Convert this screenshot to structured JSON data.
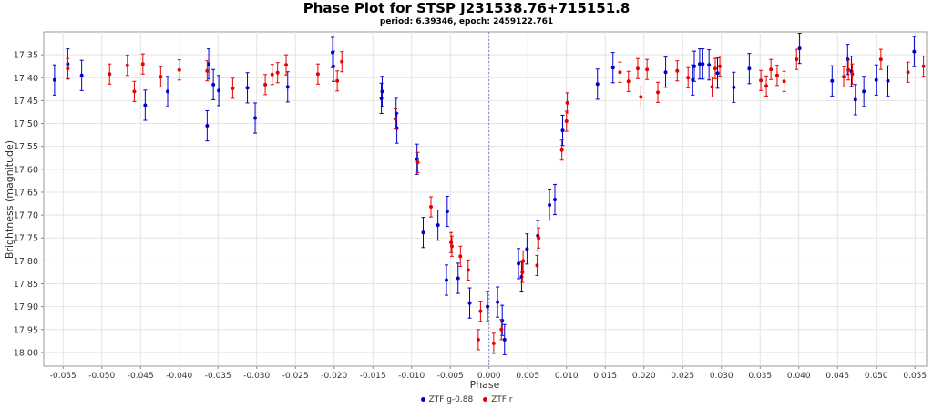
{
  "chart_data": {
    "type": "scatter",
    "title": "Phase Plot for STSP J231538.76+715151.8",
    "subtitle": "period: 6.39346, epoch: 2459122.761",
    "xlabel": "Phase",
    "ylabel": "Brightness (magnitude)",
    "xlim": [
      -0.0575,
      0.0565
    ],
    "ylim": [
      17.3,
      18.03
    ],
    "y_inverted": true,
    "grid": true,
    "legend_position": "bottom",
    "x_ticks": [
      -0.055,
      -0.05,
      -0.045,
      -0.04,
      -0.035,
      -0.03,
      -0.025,
      -0.02,
      -0.015,
      -0.01,
      -0.005,
      0.0,
      0.005,
      0.01,
      0.015,
      0.02,
      0.025,
      0.03,
      0.035,
      0.04,
      0.045,
      0.05,
      0.055
    ],
    "x_tick_labels": [
      "-0.055",
      "-0.050",
      "-0.045",
      "-0.040",
      "-0.035",
      "-0.030",
      "-0.025",
      "-0.020",
      "-0.015",
      "-0.010",
      "-0.005",
      "0.000",
      "0.005",
      "0.010",
      "0.015",
      "0.020",
      "0.025",
      "0.030",
      "0.035",
      "0.040",
      "0.045",
      "0.050",
      "0.055"
    ],
    "y_ticks": [
      17.35,
      17.4,
      17.45,
      17.5,
      17.55,
      17.6,
      17.65,
      17.7,
      17.75,
      17.8,
      17.85,
      17.9,
      17.95,
      18.0
    ],
    "y_tick_labels": [
      "17.35",
      "17.40",
      "17.45",
      "17.50",
      "17.55",
      "17.60",
      "17.65",
      "17.70",
      "17.75",
      "17.80",
      "17.85",
      "17.90",
      "17.95",
      "18.00"
    ],
    "series": [
      {
        "name": "ZTF g-0.88",
        "color": "#0000cc",
        "points": [
          {
            "x": -0.0561,
            "y": 17.405,
            "err": 0.033
          },
          {
            "x": -0.0544,
            "y": 17.37,
            "err": 0.033
          },
          {
            "x": -0.0526,
            "y": 17.395,
            "err": 0.033
          },
          {
            "x": -0.0444,
            "y": 17.46,
            "err": 0.033
          },
          {
            "x": -0.0415,
            "y": 17.43,
            "err": 0.033
          },
          {
            "x": -0.0364,
            "y": 17.505,
            "err": 0.033
          },
          {
            "x": -0.0362,
            "y": 17.37,
            "err": 0.033
          },
          {
            "x": -0.0356,
            "y": 17.415,
            "err": 0.033
          },
          {
            "x": -0.0349,
            "y": 17.428,
            "err": 0.033
          },
          {
            "x": -0.0312,
            "y": 17.422,
            "err": 0.033
          },
          {
            "x": -0.0302,
            "y": 17.488,
            "err": 0.033
          },
          {
            "x": -0.026,
            "y": 17.42,
            "err": 0.033
          },
          {
            "x": -0.0202,
            "y": 17.345,
            "err": 0.033
          },
          {
            "x": -0.0201,
            "y": 17.375,
            "err": 0.033
          },
          {
            "x": -0.0139,
            "y": 17.445,
            "err": 0.033
          },
          {
            "x": -0.0138,
            "y": 17.43,
            "err": 0.033
          },
          {
            "x": -0.012,
            "y": 17.478,
            "err": 0.033
          },
          {
            "x": -0.0119,
            "y": 17.51,
            "err": 0.033
          },
          {
            "x": -0.0093,
            "y": 17.578,
            "err": 0.033
          },
          {
            "x": -0.0085,
            "y": 17.738,
            "err": 0.033
          },
          {
            "x": -0.0066,
            "y": 17.722,
            "err": 0.033
          },
          {
            "x": -0.0055,
            "y": 17.842,
            "err": 0.033
          },
          {
            "x": -0.0054,
            "y": 17.692,
            "err": 0.033
          },
          {
            "x": -0.004,
            "y": 17.838,
            "err": 0.033
          },
          {
            "x": -0.0025,
            "y": 17.892,
            "err": 0.033
          },
          {
            "x": -0.0002,
            "y": 17.9,
            "err": 0.033
          },
          {
            "x": 0.0011,
            "y": 17.89,
            "err": 0.033
          },
          {
            "x": 0.0017,
            "y": 17.93,
            "err": 0.033
          },
          {
            "x": 0.002,
            "y": 17.972,
            "err": 0.033
          },
          {
            "x": 0.0038,
            "y": 17.806,
            "err": 0.033
          },
          {
            "x": 0.0042,
            "y": 17.835,
            "err": 0.033
          },
          {
            "x": 0.0049,
            "y": 17.774,
            "err": 0.033
          },
          {
            "x": 0.0063,
            "y": 17.745,
            "err": 0.033
          },
          {
            "x": 0.0078,
            "y": 17.678,
            "err": 0.033
          },
          {
            "x": 0.0085,
            "y": 17.666,
            "err": 0.033
          },
          {
            "x": 0.0095,
            "y": 17.515,
            "err": 0.033
          },
          {
            "x": 0.014,
            "y": 17.414,
            "err": 0.033
          },
          {
            "x": 0.016,
            "y": 17.378,
            "err": 0.033
          },
          {
            "x": 0.0228,
            "y": 17.388,
            "err": 0.033
          },
          {
            "x": 0.0263,
            "y": 17.405,
            "err": 0.033
          },
          {
            "x": 0.0265,
            "y": 17.375,
            "err": 0.033
          },
          {
            "x": 0.0272,
            "y": 17.37,
            "err": 0.033
          },
          {
            "x": 0.0276,
            "y": 17.37,
            "err": 0.033
          },
          {
            "x": 0.0284,
            "y": 17.372,
            "err": 0.033
          },
          {
            "x": 0.0295,
            "y": 17.39,
            "err": 0.033
          },
          {
            "x": 0.0316,
            "y": 17.421,
            "err": 0.033
          },
          {
            "x": 0.0336,
            "y": 17.38,
            "err": 0.033
          },
          {
            "x": 0.0401,
            "y": 17.336,
            "err": 0.033
          },
          {
            "x": 0.0443,
            "y": 17.407,
            "err": 0.033
          },
          {
            "x": 0.0463,
            "y": 17.36,
            "err": 0.033
          },
          {
            "x": 0.0468,
            "y": 17.386,
            "err": 0.033
          },
          {
            "x": 0.0473,
            "y": 17.448,
            "err": 0.033
          },
          {
            "x": 0.0484,
            "y": 17.43,
            "err": 0.033
          },
          {
            "x": 0.05,
            "y": 17.405,
            "err": 0.033
          },
          {
            "x": 0.0515,
            "y": 17.407,
            "err": 0.033
          },
          {
            "x": 0.0549,
            "y": 17.343,
            "err": 0.033
          }
        ]
      },
      {
        "name": "ZTF r",
        "color": "#e80000",
        "points": [
          {
            "x": -0.0544,
            "y": 17.38,
            "err": 0.022
          },
          {
            "x": -0.049,
            "y": 17.392,
            "err": 0.022
          },
          {
            "x": -0.0467,
            "y": 17.373,
            "err": 0.022
          },
          {
            "x": -0.0458,
            "y": 17.43,
            "err": 0.022
          },
          {
            "x": -0.0447,
            "y": 17.37,
            "err": 0.022
          },
          {
            "x": -0.0424,
            "y": 17.398,
            "err": 0.022
          },
          {
            "x": -0.04,
            "y": 17.383,
            "err": 0.022
          },
          {
            "x": -0.0364,
            "y": 17.385,
            "err": 0.022
          },
          {
            "x": -0.0331,
            "y": 17.423,
            "err": 0.022
          },
          {
            "x": -0.0289,
            "y": 17.415,
            "err": 0.022
          },
          {
            "x": -0.028,
            "y": 17.393,
            "err": 0.022
          },
          {
            "x": -0.0273,
            "y": 17.389,
            "err": 0.022
          },
          {
            "x": -0.0262,
            "y": 17.372,
            "err": 0.022
          },
          {
            "x": -0.0221,
            "y": 17.392,
            "err": 0.022
          },
          {
            "x": -0.0196,
            "y": 17.407,
            "err": 0.022
          },
          {
            "x": -0.019,
            "y": 17.365,
            "err": 0.022
          },
          {
            "x": -0.0121,
            "y": 17.49,
            "err": 0.022
          },
          {
            "x": -0.0092,
            "y": 17.585,
            "err": 0.022
          },
          {
            "x": -0.0075,
            "y": 17.682,
            "err": 0.022
          },
          {
            "x": -0.0049,
            "y": 17.76,
            "err": 0.022
          },
          {
            "x": -0.0048,
            "y": 17.768,
            "err": 0.022
          },
          {
            "x": -0.0037,
            "y": 17.79,
            "err": 0.022
          },
          {
            "x": -0.0027,
            "y": 17.82,
            "err": 0.022
          },
          {
            "x": -0.0014,
            "y": 17.972,
            "err": 0.022
          },
          {
            "x": -0.0011,
            "y": 17.91,
            "err": 0.022
          },
          {
            "x": 0.0006,
            "y": 17.98,
            "err": 0.022
          },
          {
            "x": 0.0016,
            "y": 17.95,
            "err": 0.022
          },
          {
            "x": 0.0043,
            "y": 17.825,
            "err": 0.022
          },
          {
            "x": 0.0044,
            "y": 17.8,
            "err": 0.022
          },
          {
            "x": 0.0062,
            "y": 17.81,
            "err": 0.022
          },
          {
            "x": 0.0064,
            "y": 17.75,
            "err": 0.022
          },
          {
            "x": 0.0094,
            "y": 17.558,
            "err": 0.022
          },
          {
            "x": 0.01,
            "y": 17.495,
            "err": 0.022
          },
          {
            "x": 0.0101,
            "y": 17.455,
            "err": 0.022
          },
          {
            "x": 0.0169,
            "y": 17.388,
            "err": 0.022
          },
          {
            "x": 0.018,
            "y": 17.408,
            "err": 0.022
          },
          {
            "x": 0.0192,
            "y": 17.38,
            "err": 0.022
          },
          {
            "x": 0.0196,
            "y": 17.442,
            "err": 0.022
          },
          {
            "x": 0.0204,
            "y": 17.382,
            "err": 0.022
          },
          {
            "x": 0.0218,
            "y": 17.432,
            "err": 0.022
          },
          {
            "x": 0.0243,
            "y": 17.385,
            "err": 0.022
          },
          {
            "x": 0.0257,
            "y": 17.4,
            "err": 0.022
          },
          {
            "x": 0.0288,
            "y": 17.42,
            "err": 0.022
          },
          {
            "x": 0.0292,
            "y": 17.38,
            "err": 0.022
          },
          {
            "x": 0.0298,
            "y": 17.375,
            "err": 0.022
          },
          {
            "x": 0.0351,
            "y": 17.406,
            "err": 0.022
          },
          {
            "x": 0.0358,
            "y": 17.418,
            "err": 0.022
          },
          {
            "x": 0.0364,
            "y": 17.382,
            "err": 0.022
          },
          {
            "x": 0.0372,
            "y": 17.395,
            "err": 0.022
          },
          {
            "x": 0.0381,
            "y": 17.408,
            "err": 0.022
          },
          {
            "x": 0.0397,
            "y": 17.36,
            "err": 0.022
          },
          {
            "x": 0.0458,
            "y": 17.398,
            "err": 0.022
          },
          {
            "x": 0.0464,
            "y": 17.383,
            "err": 0.022
          },
          {
            "x": 0.0469,
            "y": 17.392,
            "err": 0.022
          },
          {
            "x": 0.0506,
            "y": 17.36,
            "err": 0.022
          },
          {
            "x": 0.0541,
            "y": 17.388,
            "err": 0.022
          },
          {
            "x": 0.0561,
            "y": 17.375,
            "err": 0.022
          }
        ]
      }
    ]
  }
}
